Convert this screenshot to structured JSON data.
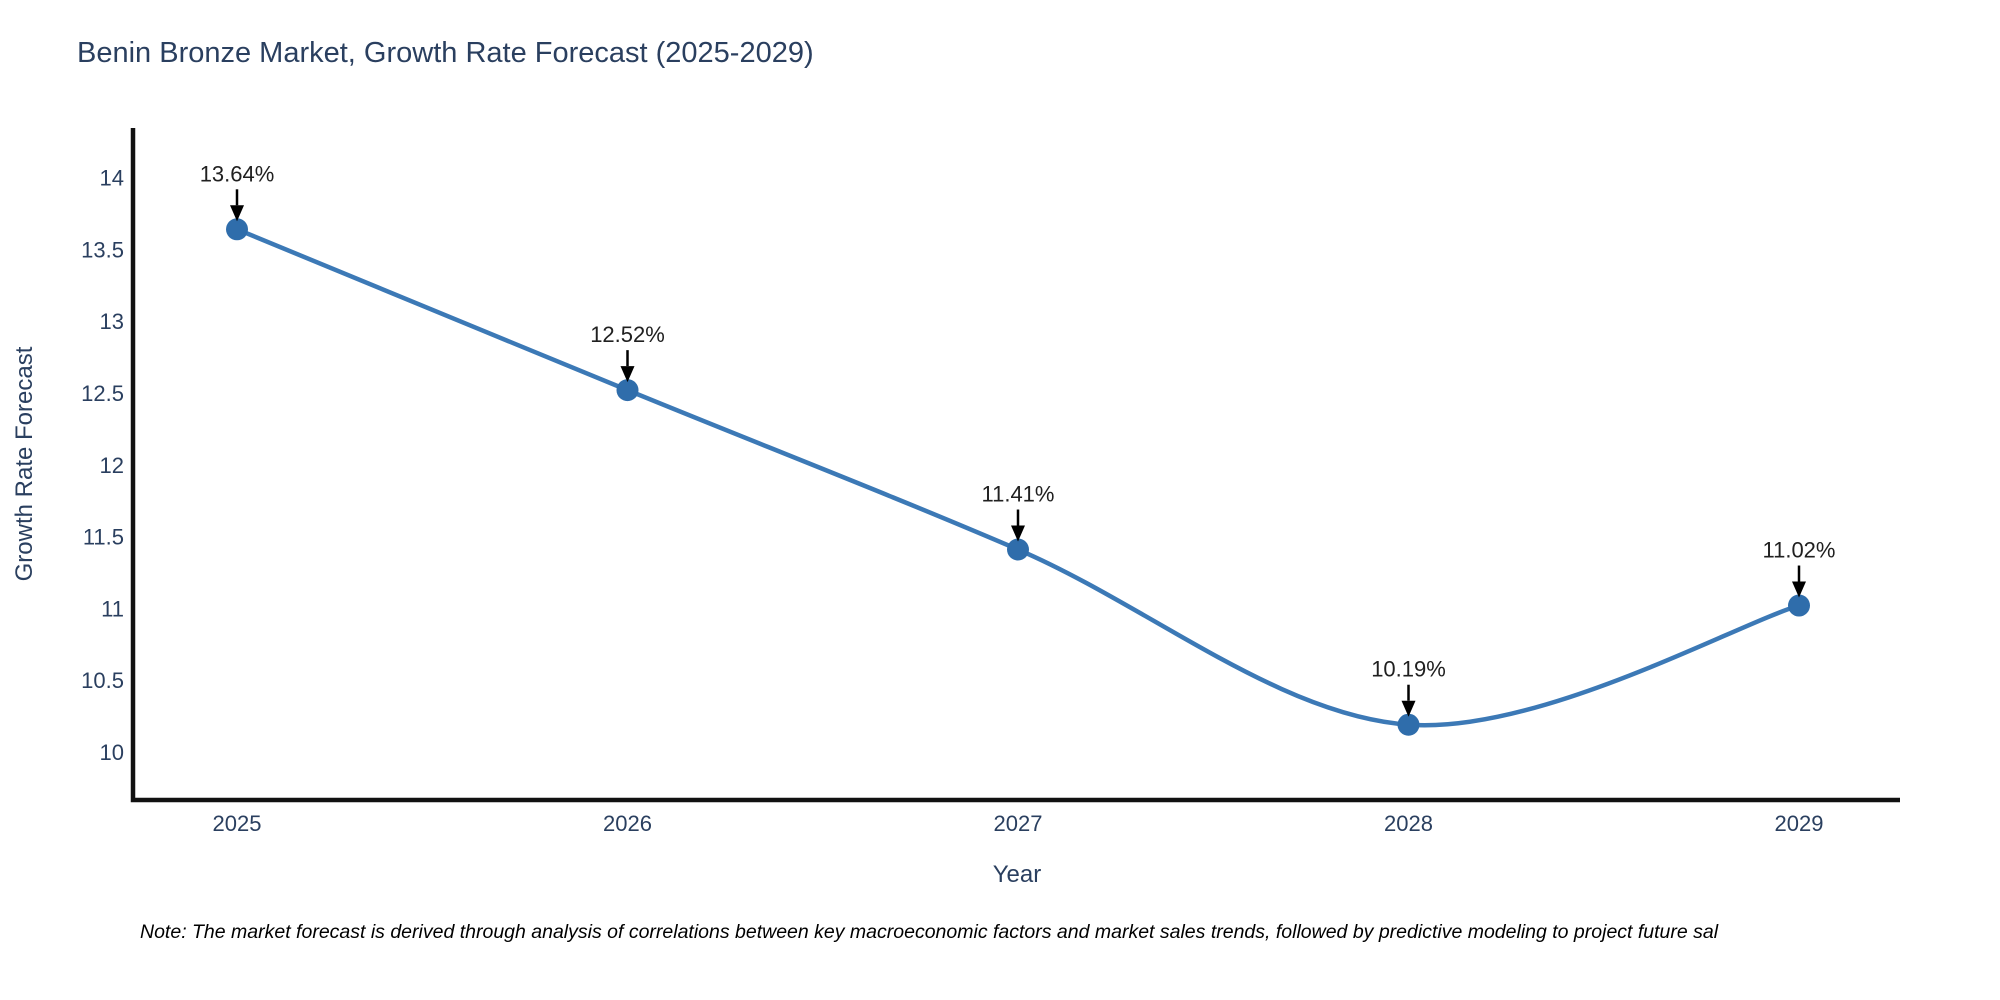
{
  "title": "Benin Bronze Market, Growth Rate Forecast (2025-2029)",
  "note": "Note: The market forecast is derived through analysis of correlations between key macroeconomic factors and market sales trends, followed by predictive modeling to project future sal",
  "chart_data": {
    "type": "line",
    "line_shape": "spline",
    "title": "Benin Bronze Market, Growth Rate Forecast (2025-2029)",
    "xlabel": "Year",
    "ylabel": "Growth Rate Forecast",
    "categories": [
      "2025",
      "2026",
      "2027",
      "2028",
      "2029"
    ],
    "series": [
      {
        "name": "Growth Rate Forecast",
        "values": [
          13.64,
          12.52,
          11.41,
          10.19,
          11.02
        ]
      }
    ],
    "point_labels": [
      "13.64%",
      "12.52%",
      "11.41%",
      "10.19%",
      "11.02%"
    ],
    "annotations": [
      {
        "x": "2025",
        "y": 13.64,
        "text": "13.64%"
      },
      {
        "x": "2026",
        "y": 12.52,
        "text": "12.52%"
      },
      {
        "x": "2027",
        "y": 11.41,
        "text": "11.41%"
      },
      {
        "x": "2028",
        "y": 10.19,
        "text": "10.19%"
      },
      {
        "x": "2029",
        "y": 11.02,
        "text": "11.02%"
      }
    ],
    "yticks": [
      10,
      10.5,
      11,
      11.5,
      12,
      12.5,
      13,
      13.5,
      14
    ],
    "ylim": [
      9.66,
      14.17
    ],
    "grid": false,
    "legend": "none",
    "colors": {
      "line": "#3c79b6",
      "marker": "#2f6dab",
      "axis": "#111111",
      "tick_label": "#2a3f5f",
      "title": "#2a3f5f",
      "annotation_text": "#202020",
      "annotation_arrow": "#000000",
      "background": "#ffffff"
    }
  }
}
